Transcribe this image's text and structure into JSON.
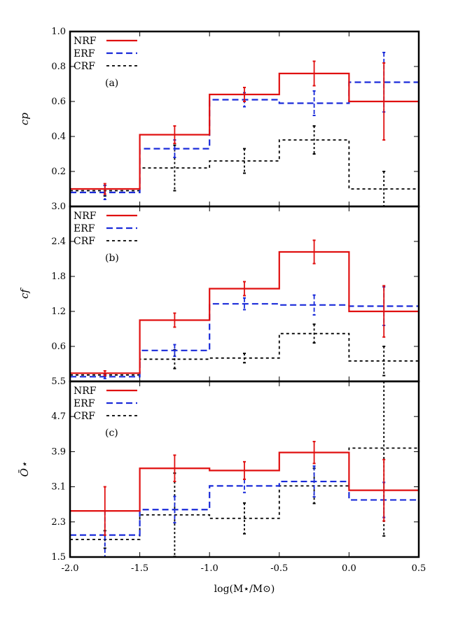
{
  "chart_data": [
    {
      "type": "step",
      "panel_label": "(a)",
      "ylabel": "cp",
      "xlim": [
        -2.0,
        0.5
      ],
      "ylim": [
        0.0,
        1.0
      ],
      "yticks": [
        0.2,
        0.4,
        0.6,
        0.8,
        1.0
      ],
      "ytick_labels": [
        "0.2",
        "0.4",
        "0.6",
        "0.8",
        "1.0"
      ],
      "bin_edges": [
        -2.0,
        -1.5,
        -1.0,
        -0.5,
        0.0,
        0.5
      ],
      "bin_centers": [
        -1.75,
        -1.25,
        -0.75,
        -0.25,
        0.25
      ],
      "series": [
        {
          "name": "NRF",
          "color": "#e01010",
          "dash": "solid",
          "values": [
            0.1,
            0.41,
            0.64,
            0.76,
            0.6
          ],
          "errors": [
            0.03,
            0.05,
            0.04,
            0.07,
            0.22
          ]
        },
        {
          "name": "ERF",
          "color": "#1a2bd9",
          "dash": "long",
          "values": [
            0.08,
            0.33,
            0.61,
            0.59,
            0.71
          ],
          "errors": [
            0.04,
            0.05,
            0.04,
            0.07,
            0.17
          ]
        },
        {
          "name": "CRF",
          "color": "#000000",
          "dash": "short",
          "values": [
            0.09,
            0.22,
            0.26,
            0.38,
            0.1
          ],
          "errors": [
            0.03,
            0.13,
            0.07,
            0.08,
            0.1
          ]
        }
      ]
    },
    {
      "type": "step",
      "panel_label": "(b)",
      "ylabel": "cf",
      "xlim": [
        -2.0,
        0.5
      ],
      "ylim": [
        0.0,
        3.0
      ],
      "yticks": [
        0.6,
        1.2,
        1.8,
        2.4,
        3.0
      ],
      "ytick_labels": [
        "0.6",
        "1.2",
        "1.8",
        "2.4",
        "3.0"
      ],
      "bin_edges": [
        -2.0,
        -1.5,
        -1.0,
        -0.5,
        0.0,
        0.5
      ],
      "bin_centers": [
        -1.75,
        -1.25,
        -0.75,
        -0.25,
        0.25
      ],
      "series": [
        {
          "name": "NRF",
          "color": "#e01010",
          "dash": "solid",
          "values": [
            0.14,
            1.05,
            1.59,
            2.22,
            1.2
          ],
          "errors": [
            0.04,
            0.12,
            0.12,
            0.2,
            0.44
          ]
        },
        {
          "name": "ERF",
          "color": "#1a2bd9",
          "dash": "long",
          "values": [
            0.08,
            0.53,
            1.33,
            1.31,
            1.29
          ],
          "errors": [
            0.03,
            0.1,
            0.1,
            0.17,
            0.33
          ]
        },
        {
          "name": "CRF",
          "color": "#000000",
          "dash": "short",
          "values": [
            0.11,
            0.38,
            0.4,
            0.82,
            0.35
          ],
          "errors": [
            0.02,
            0.16,
            0.08,
            0.16,
            0.25
          ]
        }
      ]
    },
    {
      "type": "step",
      "panel_label": "(c)",
      "ylabel": "Ō⋆",
      "xlim": [
        -2.0,
        0.5
      ],
      "ylim": [
        1.5,
        5.5
      ],
      "yticks": [
        1.5,
        2.3,
        3.1,
        3.9,
        4.7,
        5.5
      ],
      "ytick_labels": [
        "1.5",
        "2.3",
        "3.1",
        "3.9",
        "4.7",
        "5.5"
      ],
      "xticks": [
        -2.0,
        -1.5,
        -1.0,
        -0.5,
        0.0,
        0.5
      ],
      "xtick_labels": [
        "-2.0",
        "-1.5",
        "-1.0",
        "-0.5",
        "0.0",
        "0.5"
      ],
      "xlabel": "log(M⋆/M⊙)",
      "bin_edges": [
        -2.0,
        -1.5,
        -1.0,
        -0.5,
        0.0,
        0.5
      ],
      "bin_centers": [
        -1.75,
        -1.25,
        -0.75,
        -0.25,
        0.25
      ],
      "series": [
        {
          "name": "NRF",
          "color": "#e01010",
          "dash": "solid",
          "values": [
            2.55,
            3.52,
            3.47,
            3.88,
            3.02
          ],
          "errors": [
            0.55,
            0.3,
            0.2,
            0.25,
            0.7
          ]
        },
        {
          "name": "ERF",
          "color": "#1a2bd9",
          "dash": "long",
          "values": [
            2.0,
            2.58,
            3.12,
            3.22,
            2.8
          ],
          "errors": [
            0.55,
            0.3,
            0.15,
            0.35,
            0.4
          ]
        },
        {
          "name": "CRF",
          "color": "#000000",
          "dash": "short",
          "values": [
            1.9,
            2.46,
            2.38,
            3.12,
            3.98
          ],
          "errors": [
            0.2,
            0.95,
            0.35,
            0.4,
            2.0
          ]
        }
      ]
    }
  ]
}
